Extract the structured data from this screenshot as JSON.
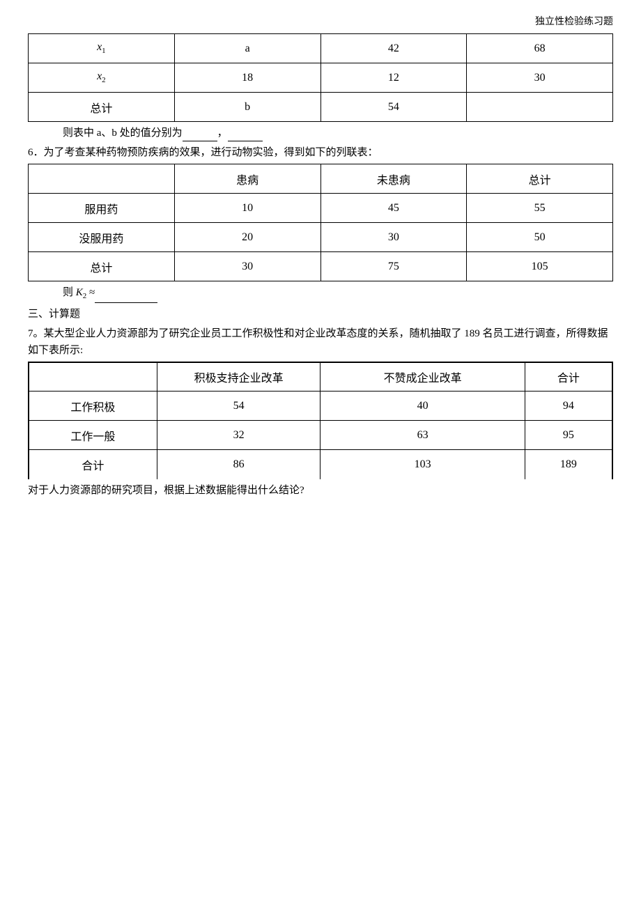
{
  "header": {
    "title": "独立性检验练习题"
  },
  "table1": {
    "rows": [
      [
        "x",
        "a",
        "42",
        "68"
      ],
      [
        "x",
        "18",
        "12",
        "30"
      ],
      [
        "总计",
        "b",
        "54",
        ""
      ]
    ],
    "subscripts": [
      "1",
      "2",
      ""
    ]
  },
  "q5_tail": {
    "text_before": "则表中 a、b 处的值分别为",
    "comma": "，"
  },
  "q6": {
    "number": "6．",
    "text": "为了考查某种药物预防疾病的效果，进行动物实验，得到如下的列联表："
  },
  "table2": {
    "headers": [
      "",
      "患病",
      "未患病",
      "总计"
    ],
    "rows": [
      [
        "服用药",
        "10",
        "45",
        "55"
      ],
      [
        "没服用药",
        "20",
        "30",
        "50"
      ],
      [
        "总计",
        "30",
        "75",
        "105"
      ]
    ]
  },
  "q6_tail": {
    "text_before": "则 ",
    "k_var": "K",
    "k_sub": "2",
    "equals": " ≈"
  },
  "section3": {
    "title": "三、计算题"
  },
  "q7": {
    "number": "7。",
    "text": "某大型企业人力资源部为了研究企业员工工作积极性和对企业改革态度的关系，随机抽取了 189 名员工进行调查，所得数据如下表所示:"
  },
  "table3": {
    "headers": [
      "",
      "积极支持企业改革",
      "不赞成企业改革",
      "合计"
    ],
    "rows": [
      [
        "工作积极",
        "54",
        "40",
        "94"
      ],
      [
        "工作一般",
        "32",
        "63",
        "95"
      ],
      [
        "合计",
        "86",
        "103",
        "189"
      ]
    ]
  },
  "q7_tail": {
    "text": "对于人力资源部的研究项目，根据上述数据能得出什么结论?"
  }
}
